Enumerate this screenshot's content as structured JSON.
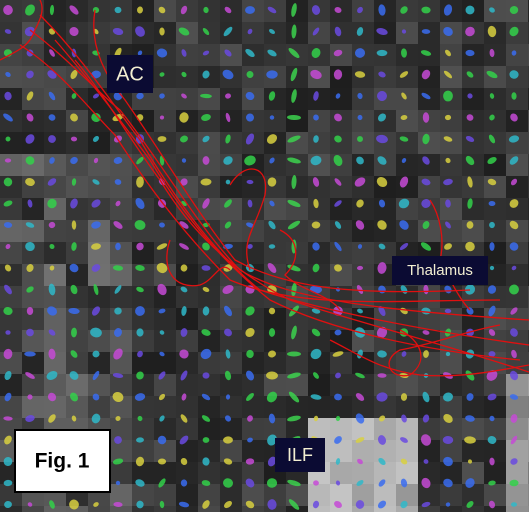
{
  "labels": {
    "ac": "AC",
    "thalamus": "Thalamus",
    "ilf": "ILF",
    "figure": "Fig. 1"
  }
}
